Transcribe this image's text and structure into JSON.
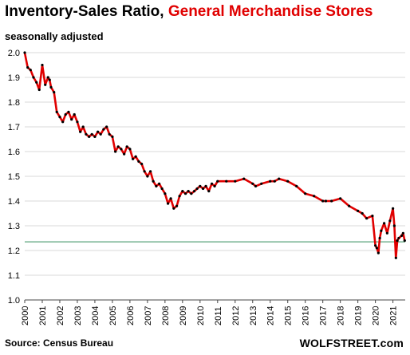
{
  "chart_data": {
    "type": "line",
    "title": "Inventory-Sales Ratio,",
    "title_highlight": "General Merchandise Stores",
    "subtitle": "seasonally adjusted",
    "source": "Source: Census Bureau",
    "brand": "WOLFSTREET.com",
    "xlabel": "",
    "ylabel": "",
    "ylim": [
      1.0,
      2.0
    ],
    "yticks": [
      "2.0",
      "1.9",
      "1.8",
      "1.7",
      "1.6",
      "1.5",
      "1.4",
      "1.3",
      "1.2",
      "1.1",
      "1.0"
    ],
    "xlim": [
      2000,
      2021.7
    ],
    "xticks": [
      "2000",
      "2001",
      "2002",
      "2003",
      "2004",
      "2005",
      "2006",
      "2007",
      "2008",
      "2009",
      "2010",
      "2011",
      "2012",
      "2013",
      "2014",
      "2015",
      "2016",
      "2017",
      "2018",
      "2019",
      "2020",
      "2021"
    ],
    "grid": true,
    "reference_line": 1.235,
    "colors": {
      "line": "#e00000",
      "markers": "#000000",
      "reference": "#2e8b57",
      "title_highlight": "#e00000"
    },
    "series": [
      {
        "x": [
          2000.0,
          2000.17,
          2000.33,
          2000.5,
          2000.67,
          2000.83,
          2001.0,
          2001.17,
          2001.33,
          2001.42,
          2001.5,
          2001.67,
          2001.83,
          2002.0,
          2002.17,
          2002.33,
          2002.5,
          2002.67,
          2002.83,
          2003.0,
          2003.17,
          2003.33,
          2003.5,
          2003.67,
          2003.83,
          2004.0,
          2004.17,
          2004.33,
          2004.5,
          2004.67,
          2004.83,
          2005.0,
          2005.17,
          2005.33,
          2005.5,
          2005.67,
          2005.83,
          2006.0,
          2006.17,
          2006.33,
          2006.5,
          2006.67,
          2006.83,
          2007.0,
          2007.17,
          2007.33,
          2007.5,
          2007.67,
          2007.83,
          2008.0,
          2008.17,
          2008.33,
          2008.5,
          2008.67,
          2008.83,
          2009.0,
          2009.17,
          2009.33,
          2009.5,
          2009.67,
          2009.83,
          2010.0,
          2010.17,
          2010.33,
          2010.5,
          2010.67,
          2010.83,
          2011.0,
          2011.5,
          2012.0,
          2012.5,
          2013.0,
          2013.17,
          2013.5,
          2014.0,
          2014.25,
          2014.5,
          2015.0,
          2015.5,
          2016.0,
          2016.5,
          2017.0,
          2017.17,
          2017.5,
          2018.0,
          2018.5,
          2019.0,
          2019.25,
          2019.5,
          2019.83,
          2020.0,
          2020.08,
          2020.17,
          2020.25,
          2020.33,
          2020.5,
          2020.67,
          2020.83,
          2021.0,
          2021.08,
          2021.17,
          2021.25,
          2021.33,
          2021.5,
          2021.58,
          2021.67
        ],
        "y": [
          2.0,
          1.94,
          1.93,
          1.9,
          1.88,
          1.85,
          1.95,
          1.87,
          1.9,
          1.89,
          1.86,
          1.84,
          1.76,
          1.74,
          1.72,
          1.75,
          1.76,
          1.73,
          1.75,
          1.72,
          1.68,
          1.7,
          1.67,
          1.66,
          1.67,
          1.66,
          1.68,
          1.67,
          1.69,
          1.7,
          1.67,
          1.66,
          1.6,
          1.62,
          1.61,
          1.59,
          1.62,
          1.61,
          1.57,
          1.58,
          1.56,
          1.55,
          1.52,
          1.5,
          1.52,
          1.48,
          1.46,
          1.47,
          1.45,
          1.43,
          1.39,
          1.41,
          1.37,
          1.38,
          1.42,
          1.44,
          1.43,
          1.44,
          1.43,
          1.44,
          1.45,
          1.46,
          1.45,
          1.46,
          1.44,
          1.47,
          1.46,
          1.48,
          1.48,
          1.48,
          1.49,
          1.47,
          1.46,
          1.47,
          1.48,
          1.48,
          1.49,
          1.48,
          1.46,
          1.43,
          1.42,
          1.4,
          1.4,
          1.4,
          1.41,
          1.38,
          1.36,
          1.35,
          1.33,
          1.34,
          1.22,
          1.21,
          1.19,
          1.25,
          1.28,
          1.31,
          1.27,
          1.32,
          1.37,
          1.3,
          1.17,
          1.24,
          1.25,
          1.26,
          1.27,
          1.24
        ],
        "marker": "dot"
      }
    ]
  }
}
